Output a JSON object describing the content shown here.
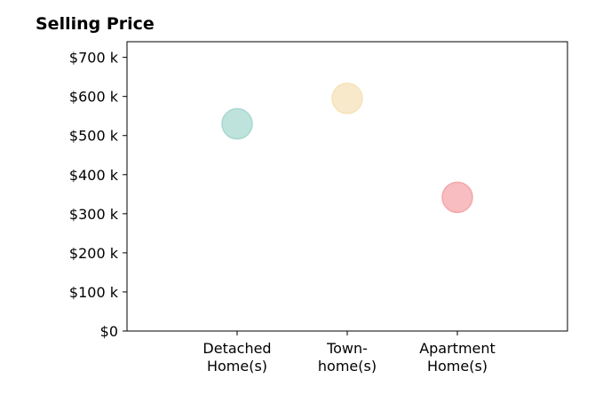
{
  "chart_data": {
    "type": "scatter",
    "title": "Selling Price",
    "xlabel": "",
    "ylabel": "",
    "categories": [
      [
        "Detached",
        "Home(s)"
      ],
      [
        "Town-",
        "home(s)"
      ],
      [
        "Apartment",
        "Home(s)"
      ]
    ],
    "values": [
      530000,
      595000,
      342000
    ],
    "colors": [
      "#a8d8d0",
      "#f5e2b8",
      "#f4a7ab"
    ],
    "ylim": [
      0,
      740000
    ],
    "yticks": [
      0,
      100000,
      200000,
      300000,
      400000,
      500000,
      600000,
      700000
    ],
    "ytick_labels": [
      "$0",
      "$100 k",
      "$200 k",
      "$300 k",
      "$400 k",
      "$500 k",
      "$600 k",
      "$700 k"
    ],
    "grid": false,
    "legend": "none"
  }
}
